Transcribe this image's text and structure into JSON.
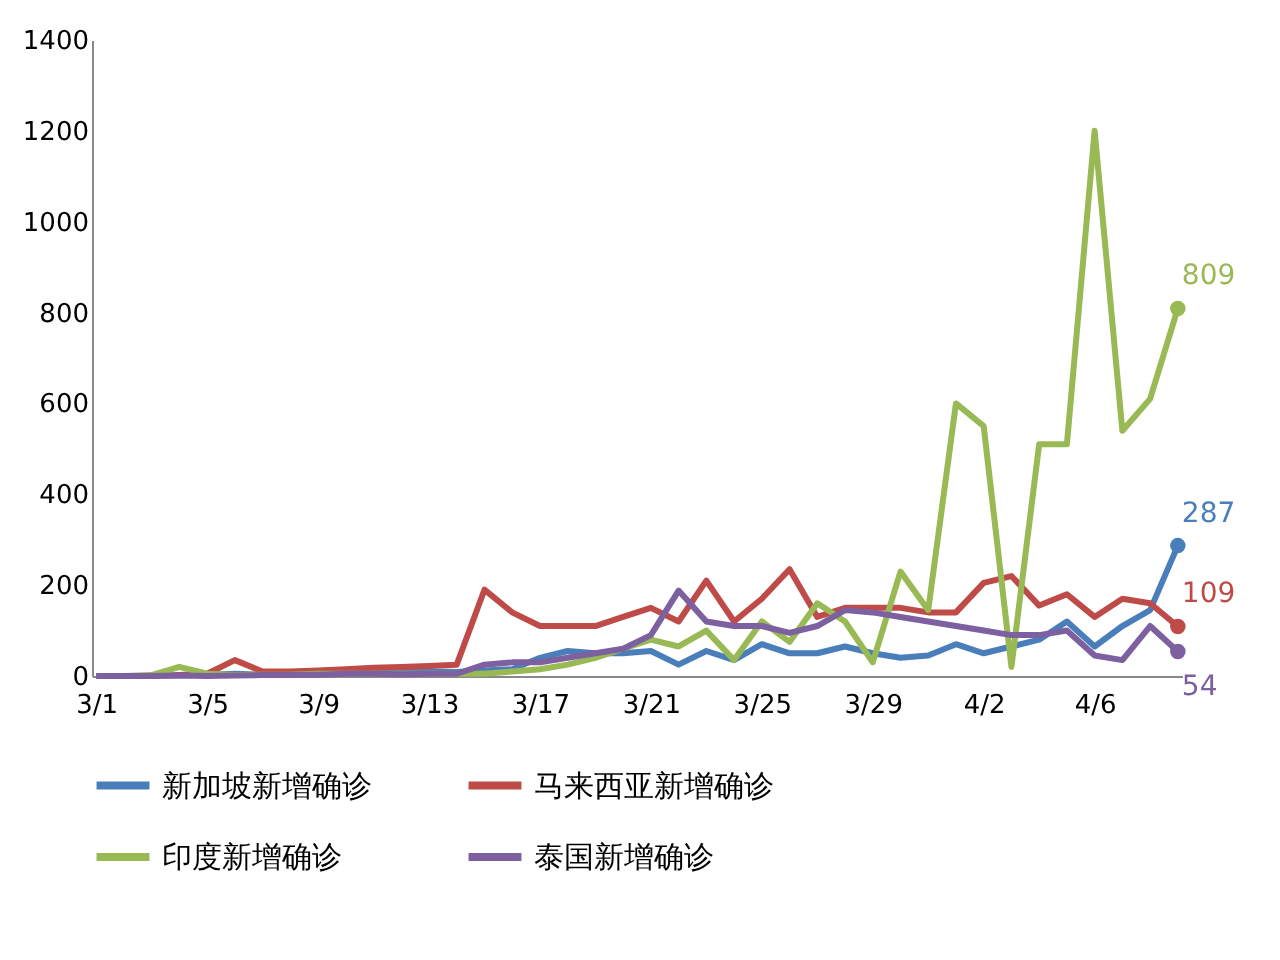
{
  "chart_data": {
    "type": "line",
    "categories": [
      "3/1",
      null,
      null,
      null,
      "3/5",
      null,
      null,
      null,
      "3/9",
      null,
      null,
      null,
      "3/13",
      null,
      null,
      null,
      "3/17",
      null,
      null,
      null,
      "3/21",
      null,
      null,
      null,
      "3/25",
      null,
      null,
      null,
      "3/29",
      null,
      null,
      null,
      "4/2",
      null,
      null,
      null,
      "4/6",
      null,
      null,
      null
    ],
    "series": [
      {
        "name": "新加坡新增确诊",
        "color": "#4a7ebb",
        "values": [
          null,
          null,
          null,
          2,
          3,
          5,
          3,
          5,
          8,
          5,
          6,
          8,
          10,
          9,
          12,
          15,
          40,
          55,
          50,
          50,
          55,
          25,
          55,
          35,
          70,
          50,
          50,
          65,
          50,
          40,
          45,
          70,
          50,
          65,
          80,
          120,
          65,
          110,
          145,
          287
        ],
        "value_labels": [
          null,
          null,
          null,
          null,
          null,
          null,
          null,
          null,
          null,
          null,
          null,
          null,
          null,
          null,
          null,
          null,
          null,
          null,
          null,
          null,
          null,
          null,
          null,
          null,
          null,
          null,
          null,
          null,
          null,
          null,
          null,
          null,
          null,
          null,
          null,
          null,
          null,
          null,
          null,
          "287"
        ]
      },
      {
        "name": "马来西亚新增确诊",
        "color": "#be4b48",
        "values": [
          null,
          null,
          0,
          2,
          5,
          35,
          10,
          10,
          12,
          15,
          18,
          20,
          22,
          25,
          190,
          140,
          110,
          110,
          110,
          130,
          150,
          120,
          210,
          120,
          170,
          235,
          130,
          150,
          150,
          150,
          140,
          140,
          205,
          220,
          155,
          180,
          130,
          170,
          160,
          109
        ],
        "value_labels": [
          null,
          null,
          null,
          null,
          null,
          null,
          null,
          null,
          null,
          null,
          null,
          null,
          null,
          null,
          null,
          null,
          null,
          null,
          null,
          null,
          null,
          null,
          null,
          null,
          null,
          null,
          null,
          null,
          null,
          null,
          null,
          null,
          null,
          null,
          null,
          null,
          null,
          null,
          null,
          "109"
        ]
      },
      {
        "name": "印度新增确诊",
        "color": "#98b954",
        "values": [
          0,
          0,
          2,
          20,
          5,
          2,
          3,
          3,
          5,
          5,
          5,
          5,
          5,
          5,
          5,
          10,
          15,
          25,
          40,
          60,
          80,
          65,
          100,
          35,
          120,
          75,
          160,
          120,
          30,
          230,
          145,
          600,
          550,
          20,
          510,
          510,
          1200,
          540,
          610,
          809
        ],
        "value_labels": [
          null,
          null,
          null,
          null,
          null,
          null,
          null,
          null,
          null,
          null,
          null,
          null,
          null,
          null,
          null,
          null,
          null,
          null,
          null,
          null,
          null,
          null,
          null,
          null,
          null,
          null,
          null,
          null,
          null,
          null,
          null,
          null,
          null,
          null,
          null,
          null,
          null,
          null,
          null,
          "809"
        ]
      },
      {
        "name": "泰国新增确诊",
        "color": "#7d60a0",
        "values": [
          0,
          0,
          0,
          1,
          0,
          1,
          2,
          2,
          3,
          5,
          5,
          4,
          5,
          5,
          25,
          30,
          30,
          40,
          50,
          60,
          90,
          188,
          120,
          110,
          110,
          95,
          110,
          145,
          140,
          130,
          120,
          110,
          100,
          90,
          90,
          100,
          45,
          35,
          110,
          54
        ],
        "value_labels": [
          null,
          null,
          null,
          null,
          null,
          null,
          null,
          null,
          null,
          null,
          null,
          null,
          null,
          null,
          null,
          null,
          null,
          null,
          null,
          null,
          null,
          null,
          null,
          null,
          null,
          null,
          null,
          null,
          null,
          null,
          null,
          null,
          null,
          null,
          null,
          null,
          null,
          null,
          null,
          "54"
        ]
      }
    ],
    "ylim": [
      0,
      1400
    ],
    "yticks": [
      0,
      200,
      400,
      600,
      800,
      1000,
      1200,
      1400
    ],
    "grid": false,
    "legend": "bottom",
    "line_style": "solid"
  }
}
